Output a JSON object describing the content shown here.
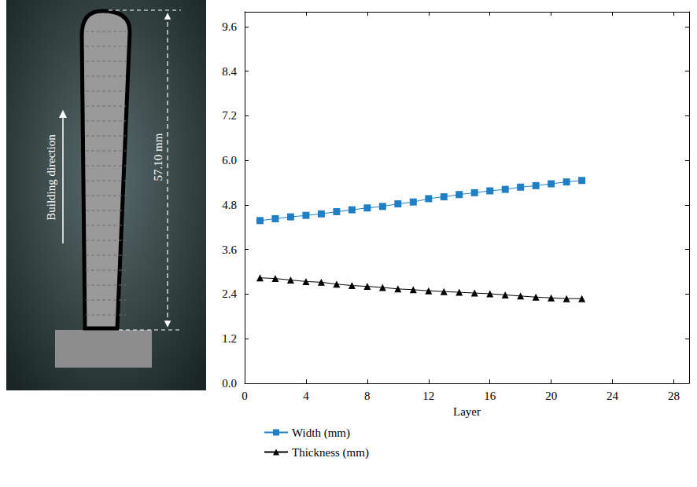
{
  "chart_data": {
    "type": "line",
    "x_label": "Layer",
    "annotations": [
      "Building direction",
      "57.10 mm"
    ],
    "x": [
      1,
      2,
      3,
      4,
      5,
      6,
      7,
      8,
      9,
      10,
      11,
      12,
      13,
      14,
      15,
      16,
      17,
      18,
      19,
      20,
      21,
      22
    ],
    "series": [
      {
        "name": "Width (mm)",
        "color": "#1f7fc4",
        "marker": "square",
        "values": [
          4.38,
          4.43,
          4.48,
          4.52,
          4.56,
          4.62,
          4.67,
          4.72,
          4.76,
          4.83,
          4.88,
          4.97,
          5.02,
          5.08,
          5.13,
          5.18,
          5.22,
          5.28,
          5.32,
          5.37,
          5.42,
          5.46
        ]
      },
      {
        "name": "Thickness (mm)",
        "color": "#000000",
        "marker": "triangle",
        "values": [
          2.84,
          2.82,
          2.78,
          2.74,
          2.72,
          2.67,
          2.63,
          2.61,
          2.58,
          2.54,
          2.52,
          2.49,
          2.47,
          2.45,
          2.43,
          2.41,
          2.38,
          2.35,
          2.32,
          2.3,
          2.28,
          2.28
        ]
      }
    ],
    "xlim": [
      0,
      29
    ],
    "xticks": [
      0,
      4,
      8,
      12,
      16,
      20,
      24,
      28
    ],
    "ylim": [
      0,
      10
    ],
    "yticks": [
      {
        "value": 0,
        "label": "0.0"
      },
      1.2,
      2.4,
      3.6,
      4.8,
      {
        "value": 6,
        "label": "6.0"
      },
      7.2,
      8.4,
      9.6
    ],
    "grid": false,
    "legend": "bottom"
  }
}
